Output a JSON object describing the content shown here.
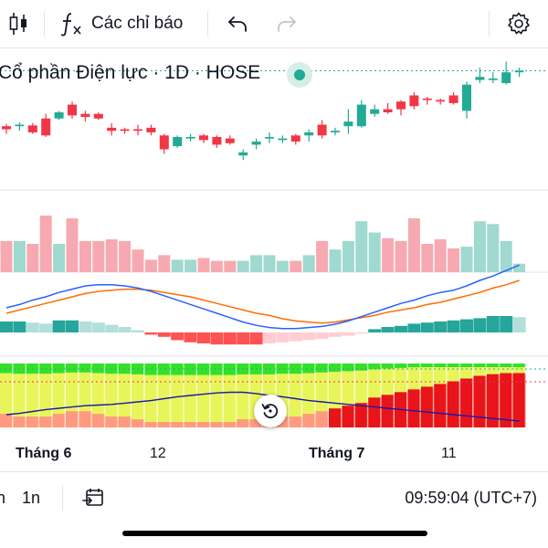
{
  "toolbar": {
    "indicators_label": "Các chỉ báo",
    "icons": [
      "candles-icon",
      "fx-icon",
      "undo-icon",
      "redo-icon",
      "settings-icon"
    ]
  },
  "symbol": {
    "title": "Cổ phần Điện lực · 1D · HOSE"
  },
  "x_axis": {
    "labels": [
      {
        "text": "Tháng 6",
        "bold": true
      },
      {
        "text": "12",
        "bold": false
      },
      {
        "text": "Tháng 7",
        "bold": true
      },
      {
        "text": "11",
        "bold": false
      }
    ]
  },
  "bottombar": {
    "range_partial": "n",
    "range_1n": "1n",
    "time": "09:59:04 (UTC+7)"
  },
  "colors": {
    "up": "#22ab94",
    "down": "#f23645",
    "volume_up": "#9fd9cf",
    "volume_down": "#f7a9b1",
    "macd_line": "#2962ff",
    "signal_line": "#ff6d00"
  },
  "chart_data": [
    {
      "type": "candlestick",
      "candles": [
        {
          "o": 146,
          "h": 147.5,
          "l": 141,
          "c": 144
        },
        {
          "o": 146,
          "h": 148.5,
          "l": 143,
          "c": 147
        },
        {
          "o": 146.5,
          "h": 148,
          "l": 141,
          "c": 142
        },
        {
          "o": 151,
          "h": 154,
          "l": 139,
          "c": 140
        },
        {
          "o": 151,
          "h": 156,
          "l": 150,
          "c": 155
        },
        {
          "o": 160,
          "h": 162,
          "l": 151,
          "c": 153
        },
        {
          "o": 154,
          "h": 156,
          "l": 149,
          "c": 152
        },
        {
          "o": 154,
          "h": 155,
          "l": 150,
          "c": 151
        },
        {
          "o": 145,
          "h": 148,
          "l": 140,
          "c": 143
        },
        {
          "o": 144,
          "h": 145,
          "l": 141,
          "c": 143
        },
        {
          "o": 144,
          "h": 147,
          "l": 140,
          "c": 143
        },
        {
          "o": 145,
          "h": 147,
          "l": 140,
          "c": 142
        },
        {
          "o": 140,
          "h": 141,
          "l": 128,
          "c": 131
        },
        {
          "o": 133,
          "h": 140,
          "l": 132,
          "c": 139
        },
        {
          "o": 138,
          "h": 141,
          "l": 136,
          "c": 139
        },
        {
          "o": 140,
          "h": 141,
          "l": 135,
          "c": 137
        },
        {
          "o": 139,
          "h": 140,
          "l": 132,
          "c": 134
        },
        {
          "o": 138,
          "h": 140,
          "l": 134,
          "c": 135
        },
        {
          "o": 127,
          "h": 131,
          "l": 124,
          "c": 129
        },
        {
          "o": 134,
          "h": 138,
          "l": 131,
          "c": 136
        },
        {
          "o": 138,
          "h": 142,
          "l": 135,
          "c": 139
        },
        {
          "o": 137,
          "h": 140,
          "l": 135,
          "c": 138
        },
        {
          "o": 140,
          "h": 141,
          "l": 134,
          "c": 136
        },
        {
          "o": 140,
          "h": 144,
          "l": 136,
          "c": 142
        },
        {
          "o": 147,
          "h": 150,
          "l": 138,
          "c": 140
        },
        {
          "o": 142,
          "h": 145,
          "l": 140,
          "c": 143
        },
        {
          "o": 146,
          "h": 157,
          "l": 141,
          "c": 149
        },
        {
          "o": 146,
          "h": 163,
          "l": 145,
          "c": 160
        },
        {
          "o": 154,
          "h": 160,
          "l": 152,
          "c": 157
        },
        {
          "o": 157,
          "h": 161,
          "l": 154,
          "c": 155
        },
        {
          "o": 162,
          "h": 163,
          "l": 153,
          "c": 157
        },
        {
          "o": 166,
          "h": 168,
          "l": 157,
          "c": 159
        },
        {
          "o": 164,
          "h": 165,
          "l": 160,
          "c": 163
        },
        {
          "o": 163,
          "h": 164,
          "l": 160,
          "c": 162
        },
        {
          "o": 166,
          "h": 168,
          "l": 160,
          "c": 161
        },
        {
          "o": 156,
          "h": 175,
          "l": 151,
          "c": 173
        },
        {
          "o": 176,
          "h": 184,
          "l": 174,
          "c": 178
        },
        {
          "o": 176,
          "h": 181,
          "l": 174,
          "c": 177
        },
        {
          "o": 174,
          "h": 188,
          "l": 173,
          "c": 181
        },
        {
          "o": 181,
          "h": 184,
          "l": 178,
          "c": 182
        }
      ]
    },
    {
      "type": "bar",
      "series": [
        {
          "values": [
            55,
            55,
            50,
            100,
            50,
            95,
            55,
            55,
            58,
            55,
            40,
            22,
            30,
            22,
            22,
            25,
            20,
            20,
            20,
            30,
            30,
            20,
            20,
            30,
            55,
            40,
            55,
            90,
            70,
            60,
            55,
            95,
            50,
            58,
            42,
            45,
            90,
            85,
            55,
            15
          ]
        }
      ]
    },
    {
      "type": "line",
      "series": [
        {
          "values": [
            0.5,
            0.8,
            1.2,
            1.5,
            1.9,
            2.2,
            2.5,
            2.6,
            2.6,
            2.5,
            2.3,
            2.0,
            1.6,
            1.2,
            0.8,
            0.4,
            0.0,
            -0.4,
            -0.8,
            -1.1,
            -1.3,
            -1.4,
            -1.4,
            -1.3,
            -1.2,
            -1.0,
            -0.7,
            -0.3,
            0.1,
            0.5,
            0.9,
            1.2,
            1.6,
            1.9,
            2.1,
            2.5,
            3.0,
            3.4,
            3.9,
            4.4
          ]
        },
        {
          "values": [
            0.0,
            0.3,
            0.6,
            0.9,
            1.2,
            1.5,
            1.8,
            2.0,
            2.1,
            2.2,
            2.2,
            2.1,
            1.9,
            1.7,
            1.5,
            1.2,
            0.9,
            0.6,
            0.3,
            0.0,
            -0.2,
            -0.5,
            -0.7,
            -0.8,
            -0.9,
            -0.8,
            -0.6,
            -0.4,
            -0.2,
            0.1,
            0.3,
            0.5,
            0.8,
            1.0,
            1.3,
            1.6,
            1.9,
            2.3,
            2.6,
            3.0
          ]
        }
      ]
    },
    {
      "type": "bar",
      "series": [
        {
          "values": [
            1.0,
            1.0,
            0.9,
            0.8,
            1.1,
            1.1,
            1.0,
            0.9,
            0.7,
            0.5,
            0.2,
            -0.2,
            -0.4,
            -0.7,
            -0.9,
            -1.0,
            -1.1,
            -1.1,
            -1.1,
            -1.1,
            -1.0,
            -0.9,
            -0.8,
            -0.7,
            -0.6,
            -0.4,
            -0.3,
            -0.1,
            0.3,
            0.5,
            0.6,
            0.8,
            0.9,
            1.0,
            1.1,
            1.2,
            1.3,
            1.5,
            1.5,
            1.4
          ]
        }
      ]
    },
    {
      "type": "heatmap",
      "series": [
        {
          "values": [
            0.25,
            0.2,
            0.2,
            0.2,
            0.25,
            0.3,
            0.3,
            0.25,
            0.2,
            0.2,
            0.15,
            0.1,
            0.1,
            0.1,
            0.1,
            0.1,
            0.1,
            0.1,
            0.15,
            0.15,
            0.15,
            0.2,
            0.2,
            0.25,
            0.3,
            0.35,
            0.4,
            0.45,
            0.55,
            0.6,
            0.65,
            0.7,
            0.75,
            0.8,
            0.85,
            0.9,
            0.95,
            0.98,
            1.0,
            1.0
          ]
        },
        {
          "values": [
            0.2,
            0.22,
            0.25,
            0.28,
            0.3,
            0.32,
            0.34,
            0.35,
            0.36,
            0.38,
            0.4,
            0.42,
            0.45,
            0.48,
            0.5,
            0.52,
            0.54,
            0.55,
            0.55,
            0.53,
            0.5,
            0.48,
            0.45,
            0.42,
            0.4,
            0.38,
            0.36,
            0.34,
            0.32,
            0.3,
            0.28,
            0.26,
            0.24,
            0.22,
            0.2,
            0.18,
            0.16,
            0.14,
            0.12,
            0.1
          ]
        }
      ]
    }
  ]
}
